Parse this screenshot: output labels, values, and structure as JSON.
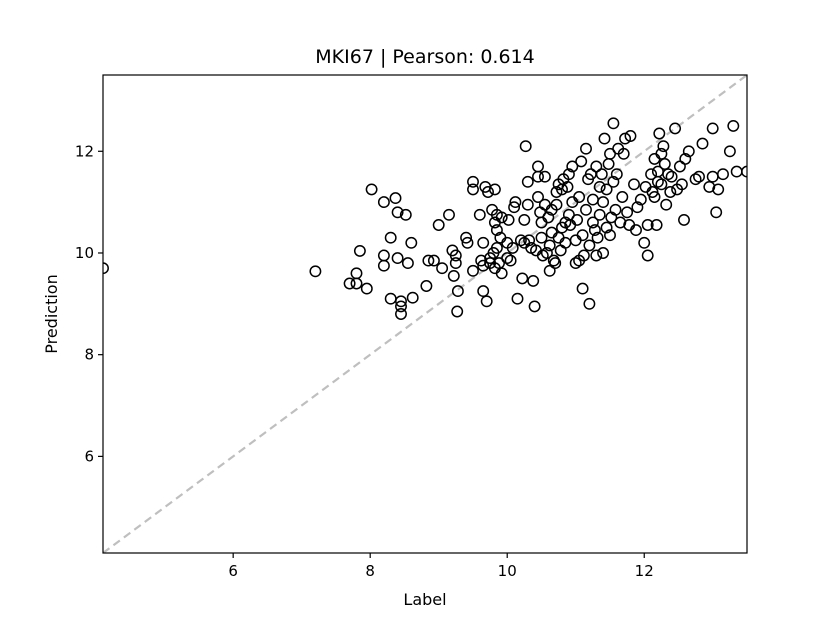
{
  "chart_data": {
    "type": "scatter",
    "title": "MKI67  |  Pearson: 0.614",
    "xlabel": "Label",
    "ylabel": "Prediction",
    "xlim": [
      4.1,
      13.5
    ],
    "ylim": [
      4.1,
      13.5
    ],
    "xticks": [
      6,
      8,
      10,
      12
    ],
    "yticks": [
      6,
      8,
      10,
      12
    ],
    "grid": false,
    "diagonal_reference": {
      "from": [
        4.1,
        4.1
      ],
      "to": [
        13.5,
        13.5
      ],
      "color": "#bfbfbf",
      "style": "dashed"
    },
    "marker": {
      "shape": "circle",
      "fill": "none",
      "stroke": "#000000"
    },
    "points": [
      [
        4.1,
        9.7
      ],
      [
        7.2,
        9.64
      ],
      [
        7.7,
        9.4
      ],
      [
        7.8,
        9.6
      ],
      [
        7.8,
        9.4
      ],
      [
        7.85,
        10.04
      ],
      [
        7.95,
        9.3
      ],
      [
        8.02,
        11.25
      ],
      [
        8.2,
        9.95
      ],
      [
        8.2,
        11.0
      ],
      [
        8.2,
        9.75
      ],
      [
        8.3,
        10.3
      ],
      [
        8.3,
        9.1
      ],
      [
        8.37,
        11.08
      ],
      [
        8.4,
        10.8
      ],
      [
        8.4,
        9.9
      ],
      [
        8.45,
        9.05
      ],
      [
        8.45,
        8.95
      ],
      [
        8.45,
        8.8
      ],
      [
        8.52,
        10.75
      ],
      [
        8.55,
        9.8
      ],
      [
        8.6,
        10.2
      ],
      [
        8.62,
        9.12
      ],
      [
        8.82,
        9.35
      ],
      [
        8.85,
        9.85
      ],
      [
        8.93,
        9.85
      ],
      [
        9.0,
        10.55
      ],
      [
        9.05,
        9.7
      ],
      [
        9.15,
        10.75
      ],
      [
        9.2,
        10.05
      ],
      [
        9.22,
        9.55
      ],
      [
        9.25,
        9.8
      ],
      [
        9.25,
        9.95
      ],
      [
        9.28,
        9.25
      ],
      [
        9.27,
        8.85
      ],
      [
        9.4,
        10.3
      ],
      [
        9.42,
        10.2
      ],
      [
        9.5,
        9.65
      ],
      [
        9.5,
        11.4
      ],
      [
        9.5,
        11.25
      ],
      [
        9.6,
        10.75
      ],
      [
        9.62,
        9.85
      ],
      [
        9.65,
        9.75
      ],
      [
        9.65,
        10.2
      ],
      [
        9.65,
        9.25
      ],
      [
        9.68,
        11.3
      ],
      [
        9.7,
        9.05
      ],
      [
        9.72,
        11.2
      ],
      [
        9.75,
        9.9
      ],
      [
        9.75,
        9.8
      ],
      [
        9.78,
        10.85
      ],
      [
        9.8,
        10.0
      ],
      [
        9.82,
        10.6
      ],
      [
        9.82,
        11.25
      ],
      [
        9.82,
        9.7
      ],
      [
        9.85,
        10.75
      ],
      [
        9.85,
        10.1
      ],
      [
        9.85,
        10.45
      ],
      [
        9.88,
        9.8
      ],
      [
        9.9,
        10.3
      ],
      [
        9.92,
        10.7
      ],
      [
        9.92,
        9.6
      ],
      [
        10.0,
        10.2
      ],
      [
        10.0,
        9.9
      ],
      [
        10.02,
        10.65
      ],
      [
        10.05,
        9.85
      ],
      [
        10.08,
        10.1
      ],
      [
        10.1,
        10.9
      ],
      [
        10.12,
        11.0
      ],
      [
        10.15,
        9.1
      ],
      [
        10.2,
        10.25
      ],
      [
        10.22,
        9.5
      ],
      [
        10.25,
        10.2
      ],
      [
        10.25,
        10.65
      ],
      [
        10.27,
        12.1
      ],
      [
        10.3,
        11.4
      ],
      [
        10.3,
        10.95
      ],
      [
        10.32,
        10.25
      ],
      [
        10.35,
        10.1
      ],
      [
        10.38,
        9.45
      ],
      [
        10.4,
        8.95
      ],
      [
        10.42,
        10.05
      ],
      [
        10.45,
        11.1
      ],
      [
        10.45,
        11.5
      ],
      [
        10.45,
        11.7
      ],
      [
        10.48,
        10.8
      ],
      [
        10.5,
        10.3
      ],
      [
        10.5,
        10.6
      ],
      [
        10.52,
        9.95
      ],
      [
        10.55,
        10.95
      ],
      [
        10.55,
        11.5
      ],
      [
        10.58,
        10.0
      ],
      [
        10.6,
        10.7
      ],
      [
        10.62,
        9.65
      ],
      [
        10.62,
        10.15
      ],
      [
        10.65,
        10.85
      ],
      [
        10.65,
        10.4
      ],
      [
        10.68,
        9.85
      ],
      [
        10.7,
        9.8
      ],
      [
        10.72,
        10.95
      ],
      [
        10.72,
        11.2
      ],
      [
        10.75,
        10.3
      ],
      [
        10.75,
        11.35
      ],
      [
        10.78,
        10.05
      ],
      [
        10.8,
        11.25
      ],
      [
        10.8,
        10.5
      ],
      [
        10.82,
        11.45
      ],
      [
        10.85,
        10.6
      ],
      [
        10.85,
        10.2
      ],
      [
        10.88,
        11.3
      ],
      [
        10.9,
        10.75
      ],
      [
        10.9,
        11.55
      ],
      [
        10.92,
        10.55
      ],
      [
        10.95,
        11.0
      ],
      [
        10.95,
        11.7
      ],
      [
        11.0,
        10.25
      ],
      [
        11.0,
        9.8
      ],
      [
        11.02,
        10.65
      ],
      [
        11.05,
        11.1
      ],
      [
        11.05,
        9.85
      ],
      [
        11.08,
        11.8
      ],
      [
        11.1,
        10.35
      ],
      [
        11.1,
        9.3
      ],
      [
        11.12,
        9.95
      ],
      [
        11.15,
        10.85
      ],
      [
        11.15,
        12.05
      ],
      [
        11.18,
        11.45
      ],
      [
        11.2,
        10.15
      ],
      [
        11.2,
        9.0
      ],
      [
        11.22,
        11.55
      ],
      [
        11.25,
        10.6
      ],
      [
        11.25,
        11.05
      ],
      [
        11.28,
        10.45
      ],
      [
        11.3,
        11.7
      ],
      [
        11.3,
        9.95
      ],
      [
        11.32,
        10.3
      ],
      [
        11.35,
        10.75
      ],
      [
        11.35,
        11.3
      ],
      [
        11.38,
        11.55
      ],
      [
        11.4,
        10.0
      ],
      [
        11.4,
        11.0
      ],
      [
        11.42,
        12.25
      ],
      [
        11.45,
        10.5
      ],
      [
        11.45,
        11.25
      ],
      [
        11.48,
        11.75
      ],
      [
        11.5,
        10.35
      ],
      [
        11.5,
        11.95
      ],
      [
        11.52,
        10.7
      ],
      [
        11.55,
        11.4
      ],
      [
        11.55,
        12.55
      ],
      [
        11.58,
        10.85
      ],
      [
        11.6,
        11.55
      ],
      [
        11.62,
        12.05
      ],
      [
        11.65,
        10.6
      ],
      [
        11.68,
        11.1
      ],
      [
        11.7,
        11.95
      ],
      [
        11.72,
        12.25
      ],
      [
        11.75,
        10.8
      ],
      [
        11.78,
        10.55
      ],
      [
        11.8,
        12.3
      ],
      [
        11.85,
        11.35
      ],
      [
        11.88,
        10.45
      ],
      [
        11.9,
        10.9
      ],
      [
        11.95,
        11.05
      ],
      [
        12.0,
        10.2
      ],
      [
        12.02,
        11.3
      ],
      [
        12.05,
        10.55
      ],
      [
        12.05,
        9.95
      ],
      [
        12.1,
        11.55
      ],
      [
        12.12,
        11.2
      ],
      [
        12.15,
        11.85
      ],
      [
        12.15,
        11.1
      ],
      [
        12.18,
        10.55
      ],
      [
        12.2,
        11.4
      ],
      [
        12.2,
        11.6
      ],
      [
        12.22,
        12.35
      ],
      [
        12.25,
        11.95
      ],
      [
        12.25,
        11.35
      ],
      [
        12.28,
        12.1
      ],
      [
        12.3,
        11.75
      ],
      [
        12.32,
        10.95
      ],
      [
        12.35,
        11.55
      ],
      [
        12.38,
        11.2
      ],
      [
        12.4,
        11.5
      ],
      [
        12.45,
        12.45
      ],
      [
        12.48,
        11.25
      ],
      [
        12.52,
        11.7
      ],
      [
        12.55,
        11.35
      ],
      [
        12.58,
        10.65
      ],
      [
        12.6,
        11.85
      ],
      [
        12.65,
        12.0
      ],
      [
        12.75,
        11.45
      ],
      [
        12.8,
        11.5
      ],
      [
        12.85,
        12.15
      ],
      [
        12.95,
        11.3
      ],
      [
        13.0,
        12.45
      ],
      [
        13.0,
        11.5
      ],
      [
        13.05,
        10.8
      ],
      [
        13.08,
        11.25
      ],
      [
        13.15,
        11.55
      ],
      [
        13.25,
        12.0
      ],
      [
        13.3,
        12.5
      ],
      [
        13.35,
        11.6
      ],
      [
        13.5,
        11.6
      ]
    ]
  }
}
